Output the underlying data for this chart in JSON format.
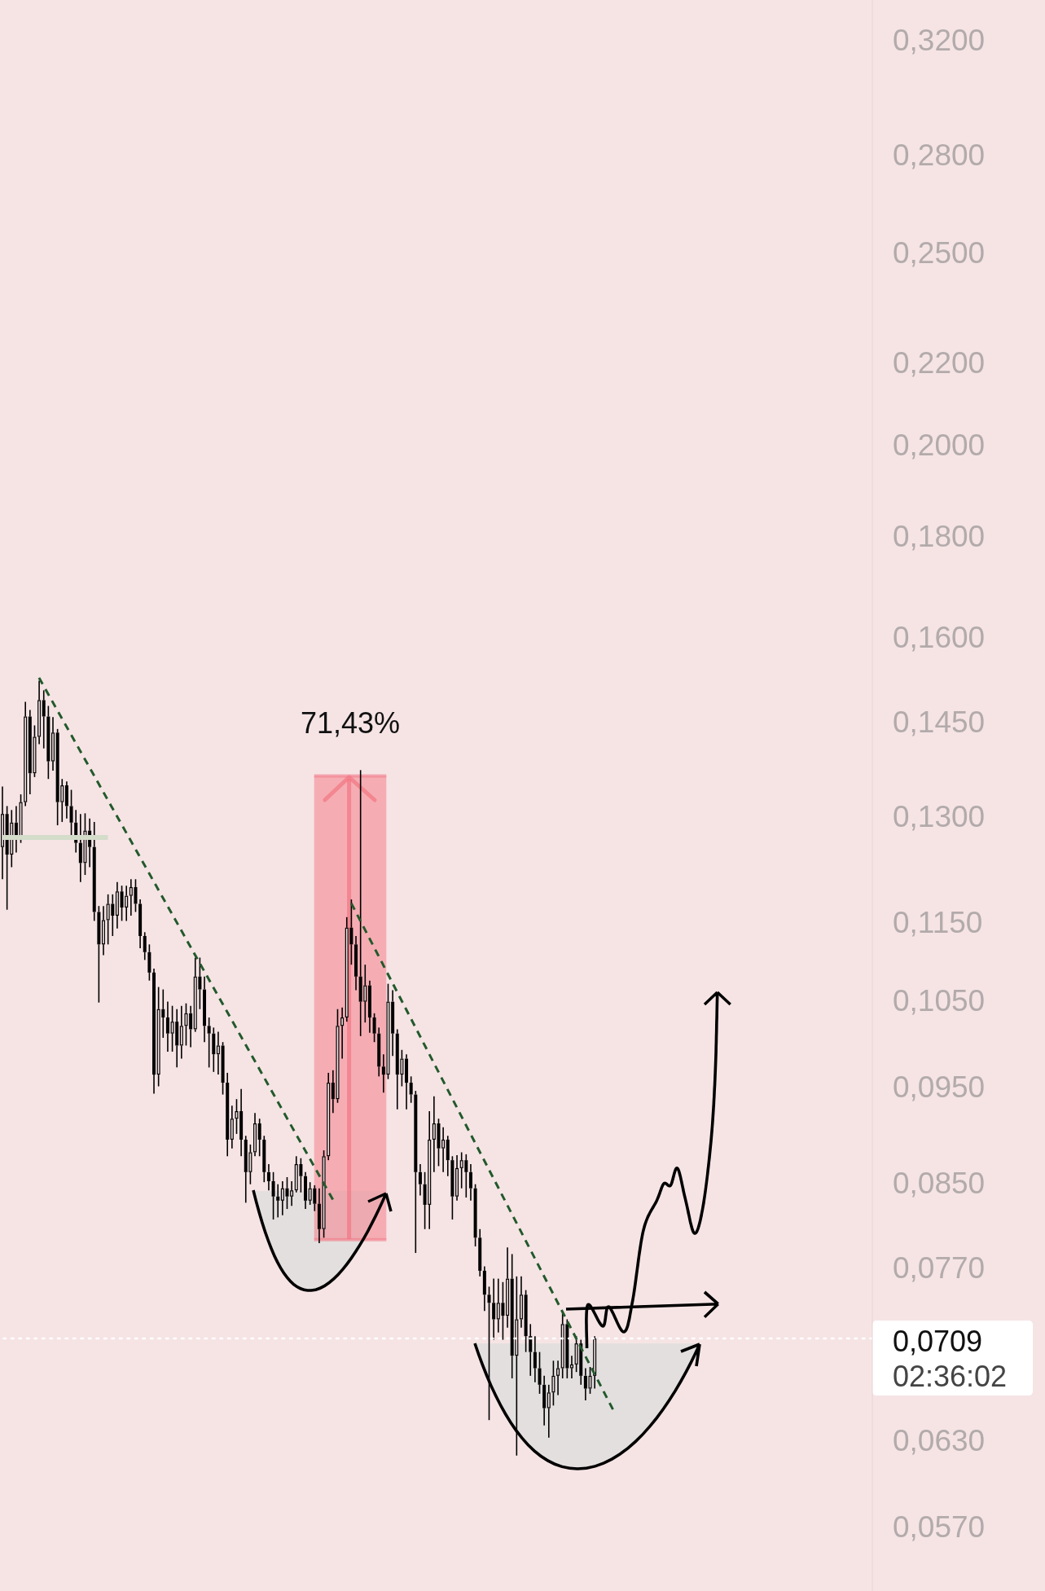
{
  "chart_data": {
    "type": "candlestick",
    "log": true,
    "tick_labels": "y",
    "color": "#000000",
    "ylim": [
      0.0529,
      0.335
    ],
    "yticks": [
      {
        "value": 0.057,
        "label": "0,0570"
      },
      {
        "value": 0.063,
        "label": "0,0630"
      },
      {
        "value": 0.077,
        "label": "0,0770"
      },
      {
        "value": 0.085,
        "label": "0,0850"
      },
      {
        "value": 0.095,
        "label": "0,0950"
      },
      {
        "value": 0.105,
        "label": "0,1050"
      },
      {
        "value": 0.115,
        "label": "0,1150"
      },
      {
        "value": 0.13,
        "label": "0,1300"
      },
      {
        "value": 0.145,
        "label": "0,1450"
      },
      {
        "value": 0.16,
        "label": "0,1600"
      },
      {
        "value": 0.18,
        "label": "0,1800"
      },
      {
        "value": 0.2,
        "label": "0,2000"
      },
      {
        "value": 0.22,
        "label": "0,2200"
      },
      {
        "value": 0.25,
        "label": "0,2500"
      },
      {
        "value": 0.28,
        "label": "0,2800"
      },
      {
        "value": 0.32,
        "label": "0,3200"
      }
    ],
    "ref_lines": [
      {
        "axis": "y",
        "value": 0.0709,
        "label": "0,0709",
        "color": "#ffffff",
        "line_style": "dotted"
      }
    ],
    "annotations": [
      "71,43%",
      "02:36:02"
    ],
    "categories": [
      null,
      null,
      null,
      null,
      null,
      null,
      null,
      null,
      null,
      null,
      null,
      null,
      null,
      null,
      null,
      null,
      null,
      null,
      null,
      null,
      null,
      null,
      null,
      null,
      null,
      null,
      null,
      null,
      null,
      null,
      null,
      null,
      null,
      null,
      null,
      null,
      null,
      null,
      null,
      null,
      null,
      null,
      null,
      null,
      null,
      null,
      null,
      null,
      null,
      null,
      null,
      null,
      null,
      null,
      null,
      null,
      null,
      null,
      null,
      null,
      null,
      null,
      null,
      null,
      null,
      null,
      null,
      null,
      null,
      null,
      null,
      null,
      null,
      null,
      null,
      null,
      null,
      null,
      null,
      null,
      null,
      null,
      null,
      null,
      null,
      null,
      null,
      null,
      null,
      null,
      null,
      null,
      null,
      null,
      null,
      null,
      null,
      null,
      null,
      null,
      null,
      null,
      null,
      null,
      null,
      null,
      null,
      null,
      null,
      null,
      null,
      null,
      null,
      null,
      null,
      null,
      null,
      null,
      null,
      null,
      null,
      null,
      null,
      null,
      null,
      null,
      null,
      null,
      null,
      null,
      null,
      null,
      null,
      null,
      null,
      null,
      null,
      null,
      null,
      null,
      null,
      null,
      null,
      null,
      null,
      null,
      null,
      null,
      null,
      null,
      null,
      null,
      null,
      null,
      null,
      null,
      null,
      null,
      null,
      null,
      null,
      null,
      null,
      null,
      null,
      null,
      null,
      null,
      null,
      null,
      null,
      null,
      null,
      null,
      null,
      null,
      null,
      null,
      null,
      null,
      null,
      null,
      null,
      null,
      null,
      null,
      null,
      null,
      null,
      null
    ],
    "ohlc": [
      [
        0.1254,
        0.1345,
        0.1208,
        0.1303
      ],
      [
        0.1303,
        0.1315,
        0.1166,
        0.1243
      ],
      [
        0.1243,
        0.1309,
        0.1225,
        0.129
      ],
      [
        0.129,
        0.1315,
        0.1246,
        0.1266
      ],
      [
        0.1266,
        0.1333,
        0.126,
        0.1321
      ],
      [
        0.1321,
        0.1484,
        0.1315,
        0.1459
      ],
      [
        0.1459,
        0.147,
        0.1333,
        0.1366
      ],
      [
        0.1366,
        0.1444,
        0.136,
        0.1425
      ],
      [
        0.1425,
        0.1521,
        0.1413,
        0.1487
      ],
      [
        0.1487,
        0.1504,
        0.1406,
        0.1459
      ],
      [
        0.1459,
        0.1477,
        0.1357,
        0.1385
      ],
      [
        0.1385,
        0.1458,
        0.137,
        0.1432
      ],
      [
        0.1432,
        0.1438,
        0.1286,
        0.1321
      ],
      [
        0.1321,
        0.1357,
        0.1291,
        0.1347
      ],
      [
        0.1347,
        0.1353,
        0.1296,
        0.1315
      ],
      [
        0.1315,
        0.134,
        0.1268,
        0.129
      ],
      [
        0.129,
        0.1309,
        0.1246,
        0.126
      ],
      [
        0.126,
        0.1303,
        0.1204,
        0.1231
      ],
      [
        0.1231,
        0.1304,
        0.1214,
        0.1278
      ],
      [
        0.1278,
        0.1296,
        0.1225,
        0.1254
      ],
      [
        0.1254,
        0.1291,
        0.1151,
        0.1163
      ],
      [
        0.1163,
        0.1171,
        0.1047,
        0.112
      ],
      [
        0.112,
        0.1171,
        0.1106,
        0.1152
      ],
      [
        0.1152,
        0.1187,
        0.112,
        0.1174
      ],
      [
        0.1174,
        0.1187,
        0.1131,
        0.1158
      ],
      [
        0.1158,
        0.1204,
        0.1141,
        0.1191
      ],
      [
        0.1191,
        0.1199,
        0.1151,
        0.1169
      ],
      [
        0.1169,
        0.1199,
        0.1151,
        0.1185
      ],
      [
        0.1185,
        0.1208,
        0.1158,
        0.1197
      ],
      [
        0.1197,
        0.1208,
        0.1163,
        0.1174
      ],
      [
        0.1174,
        0.118,
        0.1115,
        0.1131
      ],
      [
        0.1131,
        0.1136,
        0.11,
        0.111
      ],
      [
        0.111,
        0.112,
        0.1074,
        0.1084
      ],
      [
        0.1084,
        0.1089,
        0.0942,
        0.0963
      ],
      [
        0.0963,
        0.1066,
        0.095,
        0.1039
      ],
      [
        0.1039,
        0.1063,
        0.1005,
        0.1029
      ],
      [
        0.1029,
        0.1048,
        0.0989,
        0.101
      ],
      [
        0.101,
        0.1043,
        0.0989,
        0.1024
      ],
      [
        0.1024,
        0.1039,
        0.0971,
        0.0996
      ],
      [
        0.0996,
        0.1043,
        0.0981,
        0.1019
      ],
      [
        0.1019,
        0.1046,
        0.0996,
        0.1034
      ],
      [
        0.1034,
        0.1043,
        0.0994,
        0.1015
      ],
      [
        0.1015,
        0.1103,
        0.1012,
        0.1079
      ],
      [
        0.1079,
        0.1103,
        0.1039,
        0.1063
      ],
      [
        0.1063,
        0.1079,
        0.1,
        0.1019
      ],
      [
        0.1019,
        0.1029,
        0.0971,
        0.101
      ],
      [
        0.101,
        0.1017,
        0.0966,
        0.0986
      ],
      [
        0.0986,
        0.1012,
        0.0963,
        0.0996
      ],
      [
        0.0996,
        0.1,
        0.0941,
        0.0954
      ],
      [
        0.0954,
        0.0965,
        0.0876,
        0.0893
      ],
      [
        0.0893,
        0.0929,
        0.0884,
        0.0915
      ],
      [
        0.0915,
        0.0936,
        0.0899,
        0.0923
      ],
      [
        0.0923,
        0.0947,
        0.0876,
        0.0893
      ],
      [
        0.0893,
        0.0897,
        0.083,
        0.086
      ],
      [
        0.086,
        0.0888,
        0.0848,
        0.088
      ],
      [
        0.088,
        0.0921,
        0.0876,
        0.091
      ],
      [
        0.091,
        0.0915,
        0.0876,
        0.0893
      ],
      [
        0.0893,
        0.0897,
        0.085,
        0.086
      ],
      [
        0.086,
        0.0868,
        0.0842,
        0.0851
      ],
      [
        0.0851,
        0.086,
        0.0814,
        0.0836
      ],
      [
        0.0836,
        0.0848,
        0.0816,
        0.0832
      ],
      [
        0.0832,
        0.0851,
        0.0818,
        0.0844
      ],
      [
        0.0844,
        0.0855,
        0.0824,
        0.0836
      ],
      [
        0.0836,
        0.0851,
        0.0827,
        0.0842
      ],
      [
        0.0842,
        0.0876,
        0.084,
        0.0868
      ],
      [
        0.0868,
        0.0874,
        0.084,
        0.0856
      ],
      [
        0.0856,
        0.086,
        0.0824,
        0.0832
      ],
      [
        0.0832,
        0.085,
        0.0828,
        0.0844
      ],
      [
        0.0844,
        0.0847,
        0.0822,
        0.0829
      ],
      [
        0.0829,
        0.0844,
        0.0792,
        0.0805
      ],
      [
        0.0805,
        0.0882,
        0.0797,
        0.0876
      ],
      [
        0.0876,
        0.0965,
        0.0872,
        0.0954
      ],
      [
        0.0954,
        0.0968,
        0.0921,
        0.0936
      ],
      [
        0.0936,
        0.1039,
        0.0932,
        0.1019
      ],
      [
        0.1019,
        0.1041,
        0.0981,
        0.1029
      ],
      [
        0.1029,
        0.1156,
        0.1024,
        0.1142
      ],
      [
        0.1142,
        0.118,
        0.1094,
        0.112
      ],
      [
        0.112,
        0.1131,
        0.1062,
        0.1079
      ],
      [
        0.1079,
        0.1371,
        0.1007,
        0.1048
      ],
      [
        0.1048,
        0.1094,
        0.1023,
        0.1068
      ],
      [
        0.1068,
        0.1074,
        0.1011,
        0.1029
      ],
      [
        0.1029,
        0.1034,
        0.1,
        0.101
      ],
      [
        0.101,
        0.1017,
        0.0961,
        0.0972
      ],
      [
        0.0972,
        0.0986,
        0.0943,
        0.0963
      ],
      [
        0.0963,
        0.107,
        0.0958,
        0.1048
      ],
      [
        0.1048,
        0.1062,
        0.0984,
        0.101
      ],
      [
        0.101,
        0.1015,
        0.0925,
        0.0963
      ],
      [
        0.0963,
        0.0991,
        0.095,
        0.0981
      ],
      [
        0.0981,
        0.0986,
        0.0925,
        0.0954
      ],
      [
        0.0954,
        0.0961,
        0.0932,
        0.0941
      ],
      [
        0.0941,
        0.0945,
        0.0783,
        0.086
      ],
      [
        0.086,
        0.0868,
        0.0837,
        0.0848
      ],
      [
        0.0848,
        0.086,
        0.0805,
        0.0828
      ],
      [
        0.0828,
        0.0923,
        0.0805,
        0.0893
      ],
      [
        0.0893,
        0.0939,
        0.086,
        0.091
      ],
      [
        0.091,
        0.0915,
        0.0866,
        0.0884
      ],
      [
        0.0884,
        0.0906,
        0.086,
        0.0893
      ],
      [
        0.0893,
        0.0897,
        0.0856,
        0.0872
      ],
      [
        0.0872,
        0.0876,
        0.0814,
        0.0836
      ],
      [
        0.0836,
        0.0877,
        0.0832,
        0.0864
      ],
      [
        0.0864,
        0.088,
        0.0844,
        0.0872
      ],
      [
        0.0872,
        0.0878,
        0.0835,
        0.086
      ],
      [
        0.086,
        0.0868,
        0.0832,
        0.0844
      ],
      [
        0.0844,
        0.0848,
        0.0789,
        0.0797
      ],
      [
        0.0797,
        0.0805,
        0.0762,
        0.0767
      ],
      [
        0.0767,
        0.0771,
        0.0732,
        0.0746
      ],
      [
        0.0746,
        0.0753,
        0.0645,
        0.0739
      ],
      [
        0.0739,
        0.076,
        0.0708,
        0.0725
      ],
      [
        0.0725,
        0.076,
        0.0714,
        0.0739
      ],
      [
        0.0739,
        0.0757,
        0.0708,
        0.0728
      ],
      [
        0.0728,
        0.0788,
        0.0718,
        0.076
      ],
      [
        0.076,
        0.0782,
        0.0677,
        0.0695
      ],
      [
        0.0695,
        0.0762,
        0.0619,
        0.0725
      ],
      [
        0.0725,
        0.0762,
        0.0718,
        0.0746
      ],
      [
        0.0746,
        0.075,
        0.0698,
        0.0711
      ],
      [
        0.0711,
        0.0721,
        0.0679,
        0.0698
      ],
      [
        0.0698,
        0.0711,
        0.0674,
        0.0685
      ],
      [
        0.0685,
        0.0698,
        0.0665,
        0.0672
      ],
      [
        0.0672,
        0.0679,
        0.0641,
        0.0654
      ],
      [
        0.0654,
        0.0672,
        0.0632,
        0.0666
      ],
      [
        0.0666,
        0.0691,
        0.0656,
        0.0679
      ],
      [
        0.0679,
        0.0691,
        0.0664,
        0.0685
      ],
      [
        0.0685,
        0.0732,
        0.0677,
        0.0721
      ],
      [
        0.0721,
        0.0725,
        0.0677,
        0.0685
      ],
      [
        0.0685,
        0.0695,
        0.0677,
        0.0688
      ],
      [
        0.0688,
        0.0711,
        0.0682,
        0.0705
      ],
      [
        0.0705,
        0.0708,
        0.0672,
        0.0679
      ],
      [
        0.0679,
        0.0685,
        0.066,
        0.0669
      ],
      [
        0.0669,
        0.0686,
        0.0665,
        0.0679
      ],
      [
        0.0679,
        0.0711,
        0.0669,
        0.0709
      ],
      null,
      null,
      null,
      null,
      null,
      null,
      null,
      null,
      null,
      null,
      null,
      null,
      null,
      null,
      null,
      null,
      null,
      null,
      null,
      null,
      null,
      null,
      null,
      null,
      null,
      null,
      null,
      null,
      null,
      null,
      null,
      null,
      null,
      null,
      null,
      null,
      null,
      null,
      null,
      null,
      null,
      null,
      null,
      null,
      null,
      null,
      null,
      null,
      null,
      null,
      null,
      null,
      null,
      null,
      null,
      null,
      null,
      null,
      null,
      null
    ],
    "series": [
      {
        "type": "line",
        "color": "#d4dcca",
        "line_style": "solid",
        "values": [
          0.1268,
          null,
          null,
          null,
          null,
          null,
          null,
          null,
          null,
          null,
          null,
          null,
          null,
          null,
          null,
          null,
          null,
          null,
          null,
          null,
          null,
          null,
          null,
          0.1268,
          null,
          null,
          null,
          null,
          null,
          null,
          null,
          null,
          null,
          null,
          null,
          null,
          null,
          null,
          null,
          null,
          null,
          null,
          null,
          null,
          null,
          null,
          null,
          null,
          null,
          null,
          null,
          null,
          null,
          null,
          null,
          null,
          null,
          null,
          null,
          null,
          null,
          null,
          null,
          null,
          null,
          null,
          null,
          null,
          null,
          null,
          null,
          null,
          null,
          null,
          null,
          null,
          null,
          null,
          null,
          null,
          null,
          null,
          null,
          null,
          null,
          null,
          null,
          null,
          null,
          null,
          null,
          null,
          null,
          null,
          null,
          null,
          null,
          null,
          null,
          null,
          null,
          null,
          null,
          null,
          null,
          null,
          null,
          null,
          null,
          null,
          null,
          null,
          null,
          null,
          null,
          null,
          null,
          null,
          null,
          null,
          null,
          null,
          null,
          null,
          null,
          null,
          null,
          null,
          null,
          null,
          null,
          null,
          null,
          null,
          null,
          null,
          null,
          null,
          null,
          null,
          null,
          null,
          null,
          null,
          null,
          null,
          null,
          null,
          null,
          null,
          null,
          null,
          null,
          null,
          null,
          null,
          null,
          null,
          null,
          null,
          null,
          null,
          null,
          null,
          null,
          null,
          null,
          null,
          null,
          null,
          null,
          null,
          null,
          null,
          null,
          null,
          null,
          null,
          null,
          null,
          null,
          null,
          null,
          null,
          null,
          null,
          null,
          null,
          null,
          null
        ]
      },
      {
        "type": "line",
        "color": "#22592b",
        "line_style": "dashed",
        "values": [
          null,
          null,
          null,
          null,
          null,
          null,
          null,
          null,
          0.1526,
          null,
          null,
          null,
          null,
          null,
          null,
          null,
          null,
          null,
          null,
          null,
          null,
          null,
          null,
          null,
          null,
          null,
          null,
          null,
          null,
          null,
          null,
          null,
          null,
          null,
          null,
          null,
          null,
          null,
          null,
          null,
          null,
          null,
          null,
          null,
          null,
          null,
          null,
          null,
          null,
          null,
          null,
          null,
          null,
          null,
          null,
          null,
          null,
          null,
          null,
          null,
          null,
          null,
          null,
          null,
          null,
          null,
          null,
          null,
          null,
          null,
          null,
          null,
          0.0833,
          null,
          null,
          null,
          null,
          null,
          null,
          null,
          null,
          null,
          null,
          null,
          null,
          null,
          null,
          null,
          null,
          null,
          null,
          null,
          null,
          null,
          null,
          null,
          null,
          null,
          null,
          null,
          null,
          null,
          null,
          null,
          null,
          null,
          null,
          null,
          null,
          null,
          null,
          null,
          null,
          null,
          null,
          null,
          null,
          null,
          null,
          null,
          null,
          null,
          null,
          null,
          null,
          null,
          null,
          null,
          null,
          null,
          null,
          null,
          null,
          null,
          null,
          null,
          null,
          null,
          null,
          null,
          null,
          null,
          null,
          null,
          null,
          null,
          null,
          null,
          null,
          null,
          null,
          null,
          null,
          null,
          null,
          null,
          null,
          null,
          null,
          null,
          null,
          null,
          null,
          null,
          null,
          null,
          null,
          null,
          null,
          null,
          null,
          null,
          null,
          null,
          null,
          null,
          null,
          null,
          null,
          null,
          null,
          null,
          null,
          null,
          null,
          null,
          null,
          null,
          null,
          null
        ]
      },
      {
        "type": "line",
        "color": "#22592b",
        "line_style": "dashed",
        "values": [
          null,
          null,
          null,
          null,
          null,
          null,
          null,
          null,
          null,
          null,
          null,
          null,
          null,
          null,
          null,
          null,
          null,
          null,
          null,
          null,
          null,
          null,
          null,
          null,
          null,
          null,
          null,
          null,
          null,
          null,
          null,
          null,
          null,
          null,
          null,
          null,
          null,
          null,
          null,
          null,
          null,
          null,
          null,
          null,
          null,
          null,
          null,
          null,
          null,
          null,
          null,
          null,
          null,
          null,
          null,
          null,
          null,
          null,
          null,
          null,
          null,
          null,
          null,
          null,
          null,
          null,
          null,
          null,
          null,
          null,
          null,
          null,
          null,
          null,
          null,
          null,
          0.1175,
          null,
          null,
          null,
          null,
          null,
          null,
          null,
          null,
          null,
          null,
          null,
          null,
          null,
          null,
          null,
          null,
          null,
          null,
          null,
          null,
          null,
          null,
          null,
          null,
          null,
          null,
          null,
          null,
          null,
          null,
          null,
          null,
          null,
          null,
          null,
          null,
          null,
          null,
          null,
          null,
          null,
          null,
          null,
          null,
          null,
          null,
          null,
          null,
          null,
          null,
          null,
          null,
          null,
          null,
          null,
          null,
          0.0653,
          null,
          null,
          null,
          null,
          null,
          null,
          null,
          null,
          null,
          null,
          null,
          null,
          null,
          null,
          null,
          null,
          null,
          null,
          null,
          null,
          null,
          null,
          null,
          null,
          null,
          null,
          null,
          null,
          null,
          null,
          null,
          null,
          null,
          null,
          null,
          null,
          null,
          null,
          null,
          null,
          null,
          null,
          null,
          null,
          null,
          null,
          null,
          null,
          null,
          null,
          null,
          null,
          null,
          null,
          null,
          null
        ]
      }
    ]
  }
}
